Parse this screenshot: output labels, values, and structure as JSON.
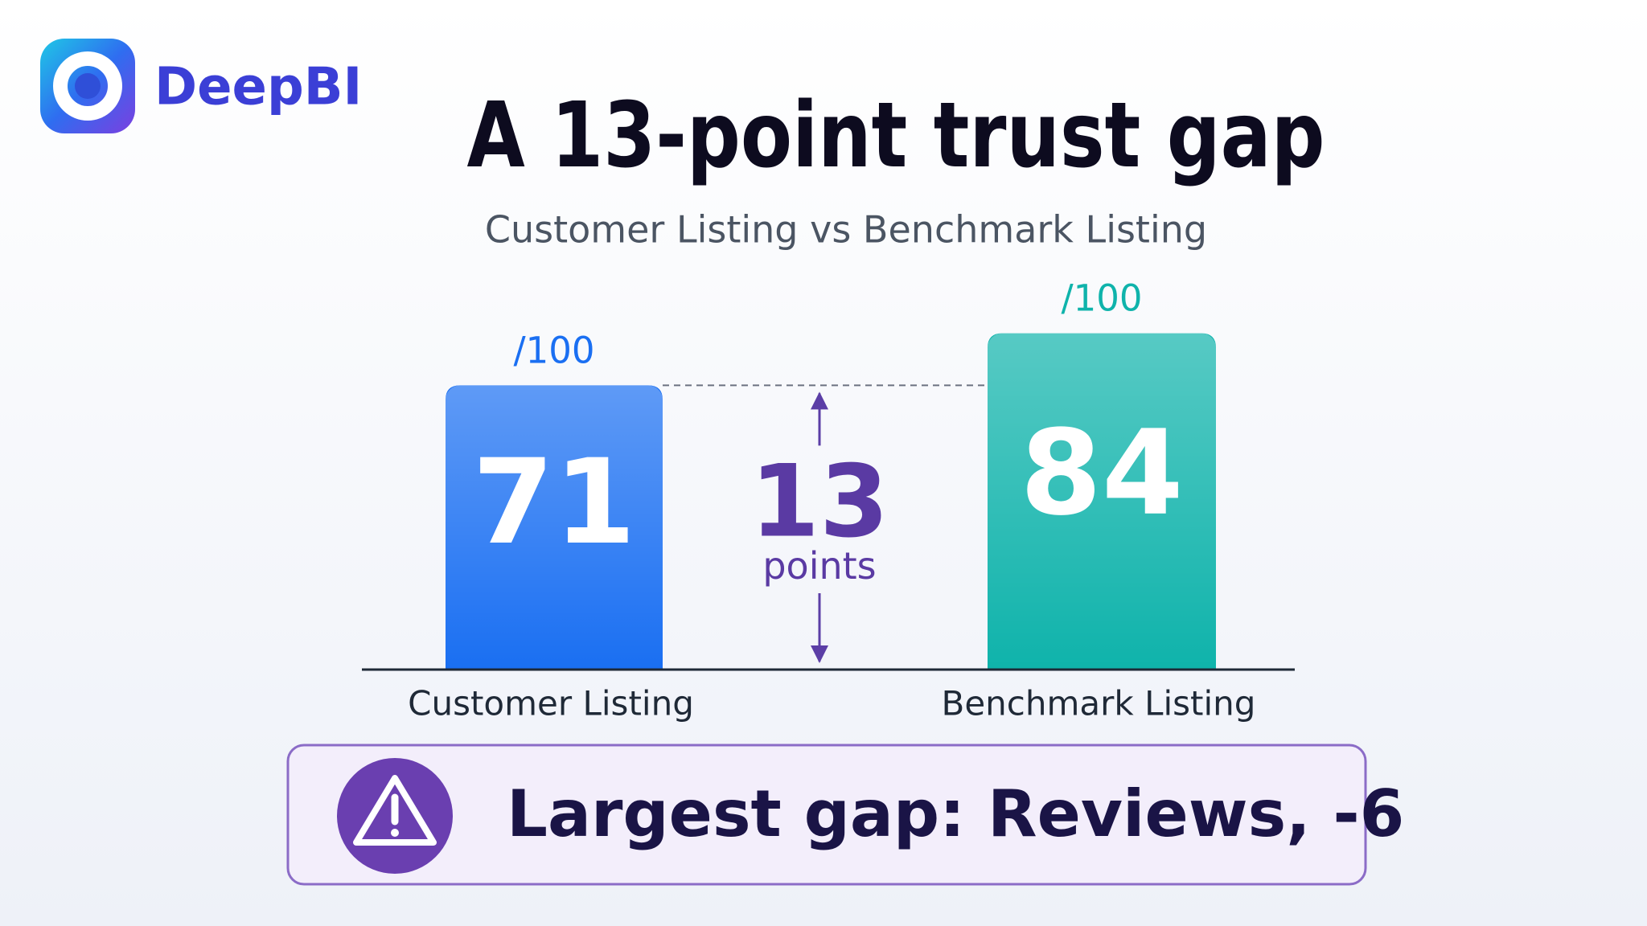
{
  "brand": "DeepBI",
  "chart_data": {
    "type": "bar",
    "title": "A 13-point trust gap",
    "subtitle": "Customer Listing vs Benchmark Listing",
    "categories": [
      "Customer Listing",
      "Benchmark Listing"
    ],
    "values": [
      71,
      84
    ],
    "colors": [
      "#1a6ff2",
      "#0fb3ab"
    ],
    "ylim": [
      0,
      100
    ],
    "max_label": "/100",
    "gap_value": 13,
    "gap_unit": "points"
  },
  "callout": "Largest gap: Reviews, -6"
}
